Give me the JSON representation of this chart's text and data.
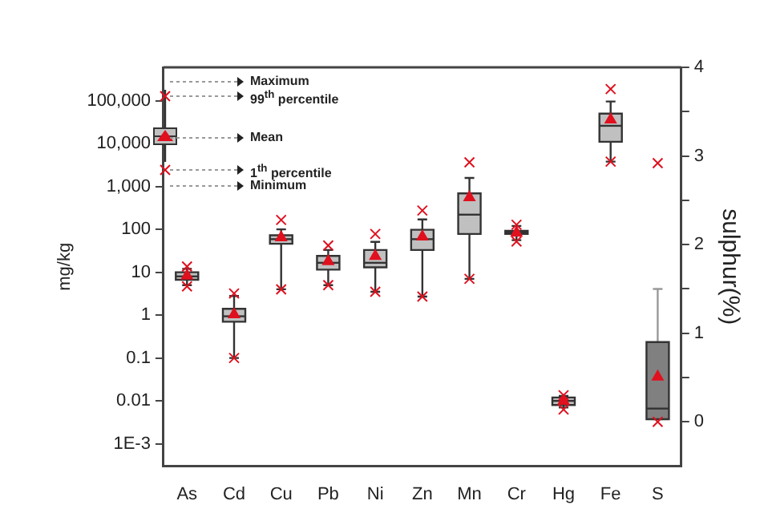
{
  "chart_data": {
    "type": "box",
    "ylabel": "mg/kg",
    "y2label": "sulphur(%)",
    "log": "y",
    "grid": false,
    "legend": false,
    "categories": [
      "As",
      "Cd",
      "Cu",
      "Pb",
      "Ni",
      "Zn",
      "Mn",
      "Cr",
      "Hg",
      "Fe",
      "S"
    ],
    "ylim": [
      0.0003,
      600000
    ],
    "yticks": [
      {
        "value": 0.001,
        "label": "1E-3"
      },
      0.01,
      0.1,
      1,
      10,
      100,
      {
        "value": 1000,
        "label": "1,000"
      },
      {
        "value": 10000,
        "label": "10,000"
      },
      {
        "value": 100000,
        "label": "100,000"
      }
    ],
    "y2lim": [
      -0.5,
      4
    ],
    "y2ticks": [
      0,
      {
        "value": 0.5,
        "label": null
      },
      1,
      {
        "value": 1.5,
        "label": null
      },
      2,
      {
        "value": 2.5,
        "label": null
      },
      3,
      {
        "value": 3.5,
        "label": null
      },
      4
    ],
    "series": [
      {
        "color": "#c0c0c0",
        "boxes": [
          {
            "low": 5,
            "q1": 6.7,
            "median": 8,
            "q3": 10,
            "high": 12,
            "mean": 8.7,
            "outliers": [
              4.7,
              13.6
            ]
          },
          {
            "low": 0.1,
            "q1": 0.7,
            "median": 0.94,
            "q3": 1.4,
            "high": 2.8,
            "mean": 1.1,
            "outliers": [
              0.1,
              3.2
            ]
          },
          {
            "low": 4,
            "q1": 46,
            "median": 59,
            "q3": 73,
            "high": 100,
            "mean": 68,
            "outliers": [
              4,
              166
            ]
          },
          {
            "low": 5,
            "q1": 11.5,
            "median": 16.6,
            "q3": 24,
            "high": 33,
            "mean": 19,
            "outliers": [
              5,
              42
            ]
          },
          {
            "low": 3.5,
            "q1": 13,
            "median": 16.6,
            "q3": 33,
            "high": 51,
            "mean": 25,
            "outliers": [
              3.5,
              78
            ]
          },
          {
            "low": 2.7,
            "q1": 33,
            "median": 59,
            "q3": 98,
            "high": 170,
            "mean": 71,
            "outliers": [
              2.7,
              275
            ]
          },
          {
            "low": 7,
            "q1": 78,
            "median": 220,
            "q3": 690,
            "high": 1580,
            "mean": 590,
            "outliers": [
              7,
              3650
            ]
          },
          {
            "low": 56,
            "q1": 78,
            "median": 84,
            "q3": 92,
            "high": 120,
            "mean": 87,
            "outliers": [
              52,
              128
            ]
          },
          {
            "low": 0.007,
            "q1": 0.008,
            "median": 0.01,
            "q3": 0.012,
            "high": 0.013,
            "mean": 0.0105,
            "outliers": [
              0.0063,
              0.0135
            ]
          },
          {
            "low": 3800,
            "q1": 11000,
            "median": 26000,
            "q3": 50000,
            "high": 96000,
            "mean": 38000,
            "outliers": [
              3800,
              187000
            ]
          },
          null
        ]
      },
      {
        "color": "#808080",
        "axis": "y2",
        "boxes": [
          null,
          null,
          null,
          null,
          null,
          null,
          null,
          null,
          null,
          null,
          {
            "low": 0.03,
            "q1": 0.03,
            "median": 0.15,
            "q3": 0.9,
            "high": 1.5,
            "mean": 0.52,
            "outliers": [
              0,
              2.92
            ]
          }
        ]
      }
    ],
    "annotations": [
      "Maximum",
      "99$^{th}$ percentile",
      "Mean",
      "1$^{th}$ percentile",
      "Minimum"
    ]
  }
}
